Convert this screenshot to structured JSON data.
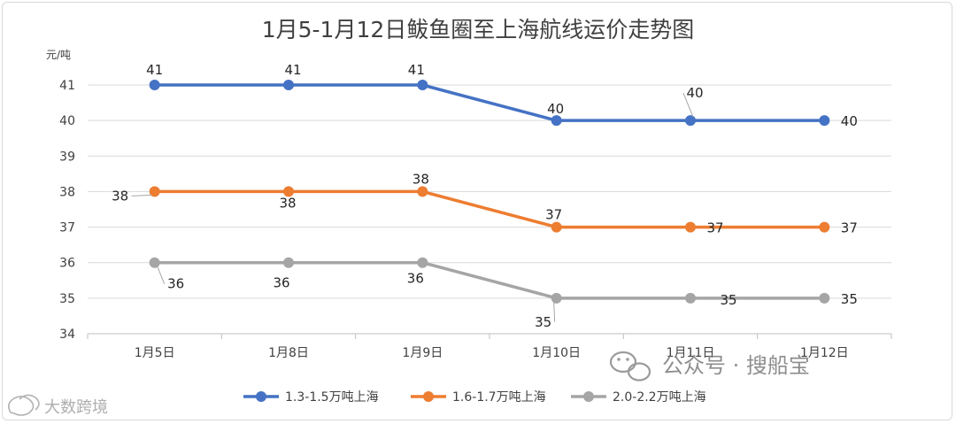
{
  "chart_data": {
    "type": "line",
    "title": "1月5-1月12日鲅鱼圈至上海航线运价走势图",
    "ylabel": "元/吨",
    "xlabel": "",
    "categories": [
      "1月5日",
      "1月8日",
      "1月9日",
      "1月10日",
      "1月11日",
      "1月12日"
    ],
    "ylim": [
      34,
      41
    ],
    "yticks": [
      34,
      35,
      36,
      37,
      38,
      39,
      40,
      41
    ],
    "grid": true,
    "legend_position": "bottom",
    "series": [
      {
        "name": "1.3-1.5万吨上海",
        "color": "#4472c4",
        "values": [
          41,
          41,
          41,
          40,
          40,
          40
        ]
      },
      {
        "name": "1.6-1.7万吨上海",
        "color": "#ed7d31",
        "values": [
          38,
          38,
          38,
          37,
          37,
          37
        ]
      },
      {
        "name": "2.0-2.2万吨上海",
        "color": "#a5a5a5",
        "values": [
          36,
          36,
          36,
          35,
          35,
          35
        ]
      }
    ]
  },
  "watermarks": {
    "brand": "公众号 · 搜船宝",
    "corner": "大数跨境",
    "brand_icon": "wechat-icon",
    "corner_icon": "bubble-icon"
  }
}
